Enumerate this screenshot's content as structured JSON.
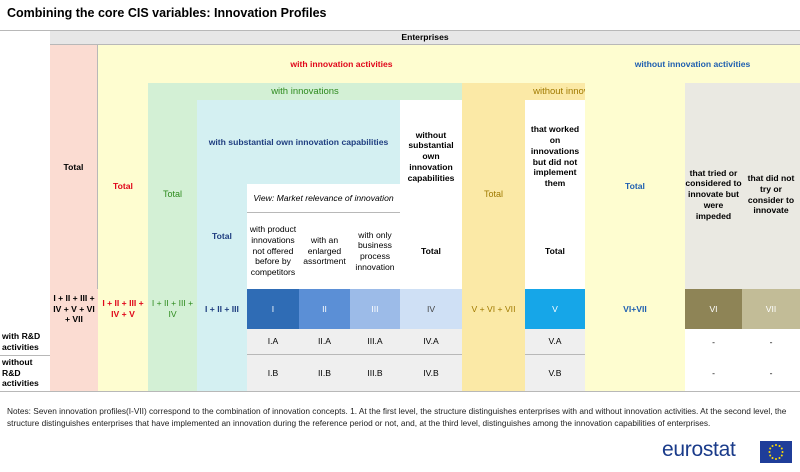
{
  "title": "Combining the core CIS variables: Innovation Profiles",
  "header": {
    "enterprises": "Enterprises",
    "total": "Total",
    "with_innovation_activities": "with innovation activities",
    "without_innovation_activities": "without innovation activities",
    "with_innovations": "with innovations",
    "without_innovations": "without innovations",
    "with_substantial": "with substantial own innovation capabilities",
    "without_substantial": "without substantial own innovation capabilities",
    "worked_not_implemented": "that worked on innovations but did not implement them",
    "tried_impeded": "that tried or considered to innovate but were impeded",
    "did_not_try": "that did not try or consider to innovate",
    "market_view": "View: Market relevance of innovation",
    "product_not_offered": "with product innovations not offered before by competitors",
    "enlarged_assortment": "with an enlarged assortment",
    "only_business_process": "with only business process innovation"
  },
  "codes": {
    "all": "I + II + III + IV + V + VI + VII",
    "with_activities": "I + II + III + IV + V",
    "with_innovations": "I + II + III + IV",
    "substantial": "I + II + III",
    "i": "I",
    "ii": "II",
    "iii": "III",
    "iv": "IV",
    "without_innovations": "V + VI + VII",
    "v": "V",
    "without_activities": "VI+VII",
    "vi": "VI",
    "vii": "VII"
  },
  "rows": {
    "with_rd": {
      "label": "with R&D activities",
      "i": "I.A",
      "ii": "II.A",
      "iii": "III.A",
      "iv": "IV.A",
      "v": "V.A",
      "vi": "-",
      "vii": "-"
    },
    "without_rd": {
      "label": "without R&D activities",
      "i": "I.B",
      "ii": "II.B",
      "iii": "III.B",
      "iv": "IV.B",
      "v": "V.B",
      "vi": "-",
      "vii": "-"
    }
  },
  "notes": "Notes: Seven innovation profiles(I-VII) correspond to the combination of innovation concepts. 1. At the first level, the structure distinguishes enterprises with and without innovation activities. At the second level, the structure distinguishes enterprises that have implemented an innovation during the reference period or not, and, at the third level, distinguishes among the innovation capabilities of enterprises.",
  "logo": "eurostat",
  "colors": {
    "total_col": "#fbdcd2",
    "with_activities": "#fefdd0",
    "with_innovations": "#d3f0d5",
    "substantial": "#d4f0f2",
    "without_innovations": "#fbe9a6",
    "without_activities_grey": "#eae9e2",
    "code_i": "#2f6cb5",
    "code_ii": "#5b8fd6",
    "code_iii": "#9cbbe8",
    "code_iv": "#cfe0f5",
    "code_v": "#16a6e8",
    "code_vi": "#8e8456",
    "code_vii": "#c2bc97"
  }
}
